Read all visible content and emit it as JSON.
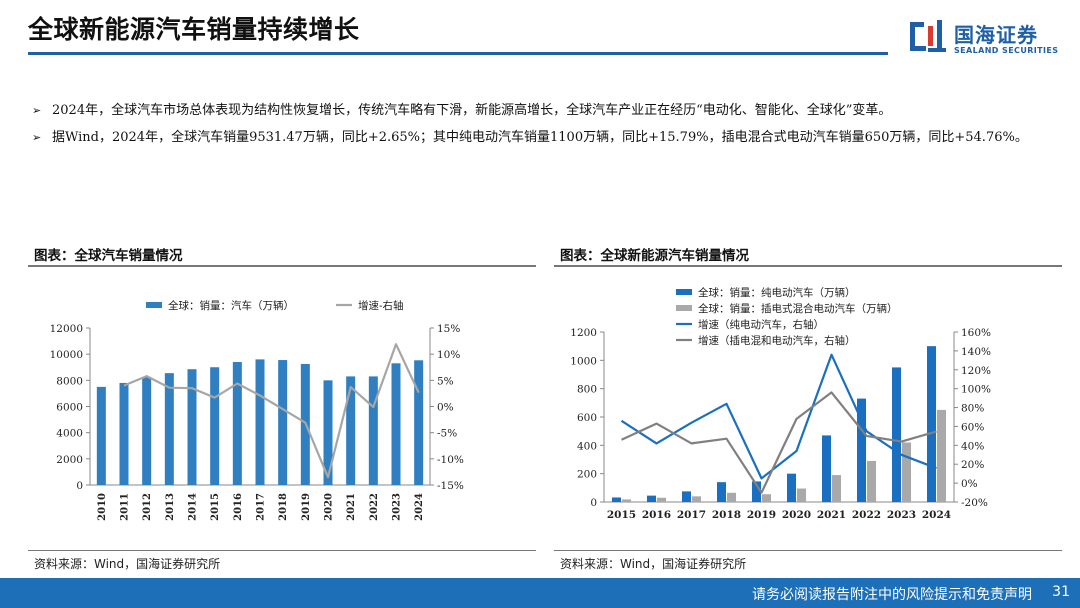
{
  "header": {
    "title": "全球新能源汽车销量持续增长",
    "logo_cn": "国海证券",
    "logo_en": "SEALAND SECURITIES"
  },
  "bullets": [
    "2024年，全球汽车市场总体表现为结构性恢复增长，传统汽车略有下滑，新能源高增长，全球汽车产业正在经历“电动化、智能化、全球化”变革。",
    "据Wind，2024年，全球汽车销量9531.47万辆，同比+2.65%；其中纯电动汽车销量1100万辆，同比+15.79%，插电混合式电动汽车销量650万辆，同比+54.76%。"
  ],
  "bullet_marker": "➢",
  "left_chart_title": "图表：全球汽车销量情况",
  "right_chart_title": "图表：全球新能源汽车销量情况",
  "left_source": "资料来源：Wind，国海证券研究所",
  "right_source": "资料来源：Wind，国海证券研究所",
  "footer": {
    "disclaimer": "请务必阅读报告附注中的风险提示和免责声明",
    "page": "31"
  },
  "colors": {
    "brand_blue": "#1f5fa6",
    "footer_blue": "#1d6fb8",
    "bar_blue": "#2f7fc1",
    "bar_blue_dark": "#1a6fc0",
    "bar_gray": "#a9a9a9",
    "line_gray": "#a6a6a6",
    "line_dark_gray": "#808080"
  },
  "chart_data": [
    {
      "type": "bar",
      "categories": [
        "2010",
        "2011",
        "2012",
        "2013",
        "2014",
        "2015",
        "2016",
        "2017",
        "2018",
        "2019",
        "2020",
        "2021",
        "2022",
        "2023",
        "2024"
      ],
      "series": [
        {
          "name": "全球：销量：汽车（万辆）",
          "type": "bar",
          "axis": "left",
          "values": [
            7500,
            7800,
            8250,
            8550,
            8850,
            9000,
            9400,
            9600,
            9550,
            9250,
            8000,
            8300,
            8300,
            9300,
            9531.47
          ]
        },
        {
          "name": "增速-右轴",
          "type": "line",
          "axis": "right",
          "values": [
            null,
            4.0,
            5.8,
            3.6,
            3.5,
            1.7,
            4.4,
            2.1,
            -0.5,
            -3.1,
            -13.5,
            3.7,
            -0.1,
            11.9,
            2.65
          ]
        }
      ],
      "legend": [
        "全球：销量：汽车（万辆）",
        "增速-右轴"
      ],
      "legend_position": "top",
      "ylim": [
        0,
        12000
      ],
      "yticks": [
        "0",
        "2000",
        "4000",
        "6000",
        "8000",
        "10000",
        "12000"
      ],
      "y2lim": [
        -15,
        15
      ],
      "y2ticks": [
        "-15%",
        "-10%",
        "-5%",
        "0%",
        "5%",
        "10%",
        "15%"
      ],
      "xlabel": "",
      "ylabel": "",
      "title": "",
      "grid": false
    },
    {
      "type": "bar",
      "categories": [
        "2015",
        "2016",
        "2017",
        "2018",
        "2019",
        "2020",
        "2021",
        "2022",
        "2023",
        "2024"
      ],
      "series": [
        {
          "name": "全球：销量：纯电动汽车（万辆）",
          "type": "bar",
          "axis": "left",
          "values": [
            32,
            45,
            75,
            140,
            145,
            200,
            470,
            730,
            950,
            1100
          ]
        },
        {
          "name": "全球：销量：插电式混合电动汽车（万辆）",
          "type": "bar",
          "axis": "left",
          "values": [
            18,
            30,
            40,
            65,
            55,
            95,
            190,
            290,
            420,
            650
          ]
        },
        {
          "name": "增速（纯电动汽车，右轴）",
          "type": "line",
          "axis": "right",
          "values": [
            66,
            42,
            64,
            84,
            5,
            34,
            136,
            55,
            30,
            15.79
          ]
        },
        {
          "name": "增速（插电混和电动汽车，右轴）",
          "type": "line",
          "axis": "right",
          "values": [
            46,
            63,
            42,
            47,
            -10,
            68,
            96,
            50,
            44,
            54.76
          ]
        }
      ],
      "legend": [
        "全球：销量：纯电动汽车（万辆）",
        "全球：销量：插电式混合电动汽车（万辆）",
        "增速（纯电动汽车，右轴）",
        "增速（插电混和电动汽车，右轴）"
      ],
      "legend_position": "top-left",
      "ylim": [
        0,
        1200
      ],
      "yticks": [
        "0",
        "200",
        "400",
        "600",
        "800",
        "1000",
        "1200"
      ],
      "y2lim": [
        -20,
        160
      ],
      "y2ticks": [
        "-20%",
        "0%",
        "20%",
        "40%",
        "60%",
        "80%",
        "100%",
        "120%",
        "140%",
        "160%"
      ],
      "xlabel": "",
      "ylabel": "",
      "title": "",
      "grid": false
    }
  ]
}
